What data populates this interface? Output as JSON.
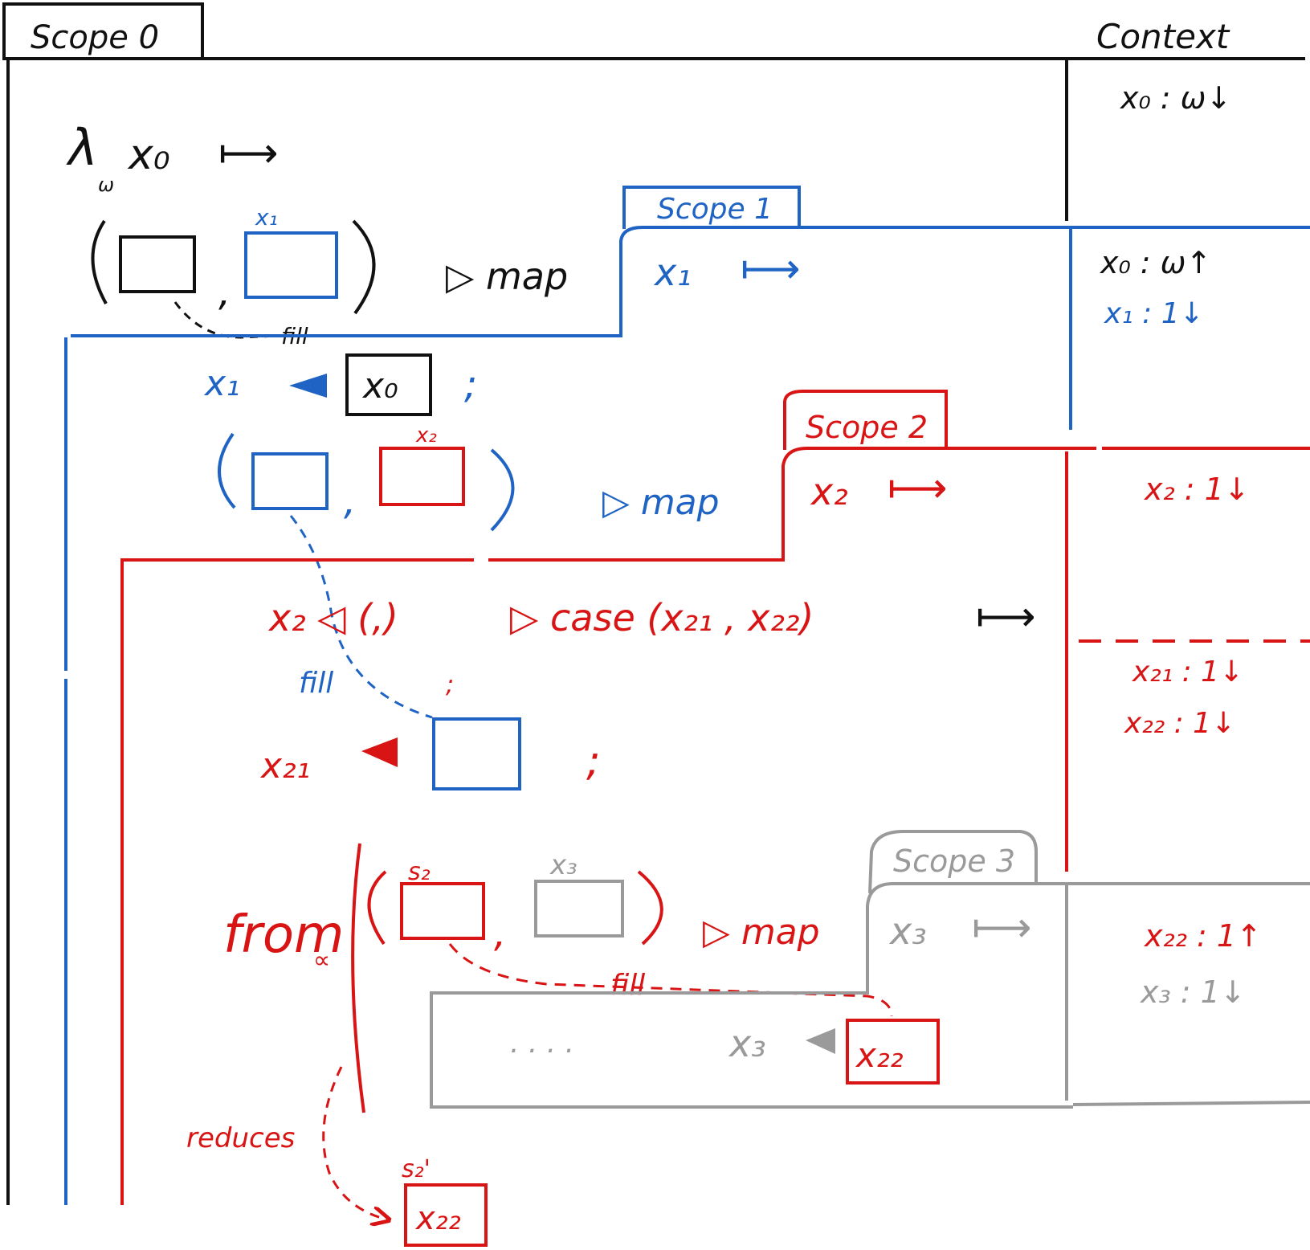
{
  "colors": {
    "scope0": "#111111",
    "scope1": "#1f63c4",
    "scope2": "#d81414",
    "scope3": "#9a9a9a"
  },
  "tabs": {
    "scope0": "Scope 0",
    "scope1": "Scope 1",
    "scope2": "Scope 2",
    "scope3": "Scope 3",
    "context": "Context"
  },
  "code": {
    "lambda": "λ",
    "lambda_sub": "ω",
    "x0": "x₀",
    "maps_to": "⟼",
    "x1_label": "x₁",
    "map1": "▷ map",
    "x1": "x₁",
    "x1_fill_target": "x₀",
    "x2_label": "x₂",
    "map2": "▷ map",
    "x2": "x₂",
    "case_line_prefix": "x₂ ◁ (,)",
    "case_line_rest": "▷ case (x₂₁ , x₂₂)",
    "x21": "x₂₁",
    "from": "from",
    "from_sub": "∝",
    "s2_label": "s₂",
    "x3_label": "x₃",
    "map3": "▷ map",
    "x3": "x₃",
    "dots": ". . . .",
    "x3_assign": "x₃",
    "x22_box": "x₂₂",
    "reduces": "reduces",
    "s2_prime": "s₂'",
    "x22_result": "x₂₂",
    "fill": "fill",
    "semicolon": ";",
    "comma": ","
  },
  "context": {
    "scope0": "x₀ : ω↓",
    "scope1_a": "x₀ : ω↑",
    "scope1_b": "x₁ : 1↓",
    "scope2_a": "x₂ : 1↓",
    "scope2_b": "x₂₁ : 1↓",
    "scope2_c": "x₂₂ : 1↓",
    "scope3_a": "x₂₂ : 1↑",
    "scope3_b": "x₃ : 1↓"
  }
}
